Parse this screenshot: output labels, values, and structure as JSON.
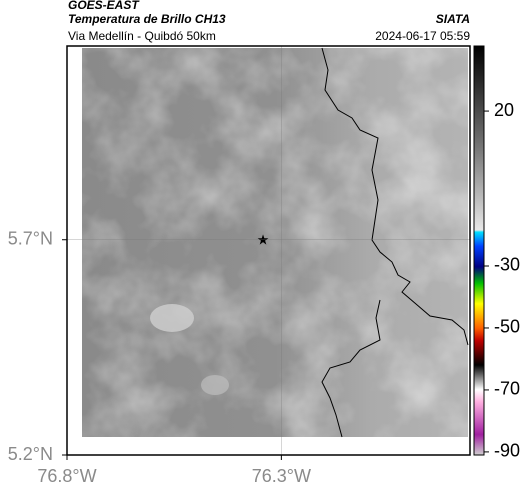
{
  "header": {
    "title": "GOES-EAST",
    "subtitle": "Temperatura de Brillo CH13",
    "source": "SIATA",
    "location": "Via Medellín - Quibdó 50km",
    "datetime": "2024-06-17 05:59"
  },
  "map": {
    "xlim": [
      -76.8,
      -75.86
    ],
    "ylim": [
      5.2,
      6.15
    ],
    "xticks": [
      {
        "value": -76.8,
        "label": "76.8°W"
      },
      {
        "value": -76.3,
        "label": "76.3°W"
      }
    ],
    "yticks": [
      {
        "value": 5.2,
        "label": "5.2°N"
      },
      {
        "value": 5.7,
        "label": "5.7°N"
      }
    ]
  },
  "colorbar": {
    "limits": [
      41,
      -91
    ],
    "ticks": [
      20,
      -30,
      -50,
      -70,
      -90
    ]
  }
}
